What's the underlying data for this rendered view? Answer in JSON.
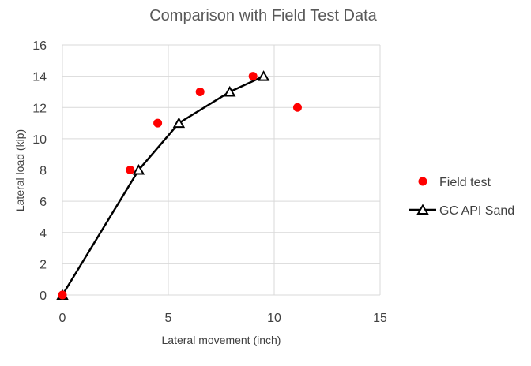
{
  "chart_data": {
    "type": "scatter",
    "title": "Comparison with Field Test Data",
    "xlabel": "Lateral movement (inch)",
    "ylabel": "Lateral load (kip)",
    "xlim": [
      0,
      15
    ],
    "ylim": [
      0,
      16
    ],
    "x_ticks": [
      "0",
      "5",
      "10",
      "15"
    ],
    "y_ticks": [
      "0",
      "2",
      "4",
      "6",
      "8",
      "10",
      "12",
      "14",
      "16"
    ],
    "grid": true,
    "legend_position": "right",
    "series": [
      {
        "name": "Field test",
        "type": "scatter",
        "color": "#ff0000",
        "marker": "circle",
        "x": [
          0,
          3.2,
          4.5,
          6.5,
          9.0,
          11.1
        ],
        "y": [
          0,
          8,
          11,
          13,
          14,
          12
        ]
      },
      {
        "name": "GC API Sand",
        "type": "line",
        "color": "#000000",
        "marker": "triangle",
        "x": [
          0,
          3.6,
          5.5,
          7.9,
          9.5
        ],
        "y": [
          0,
          8,
          11,
          13,
          14
        ]
      }
    ]
  }
}
